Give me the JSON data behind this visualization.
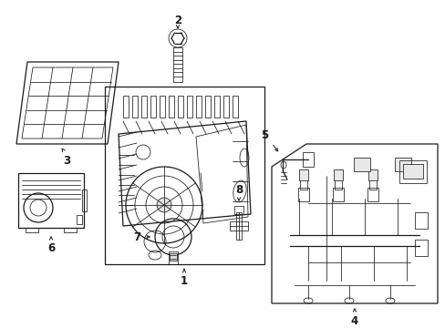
{
  "background_color": "#ffffff",
  "line_color": "#1a1a1a",
  "lw": 0.9,
  "tlw": 0.55,
  "fw": 4.89,
  "fh": 3.6,
  "dpi": 100,
  "font_size": 8.5
}
